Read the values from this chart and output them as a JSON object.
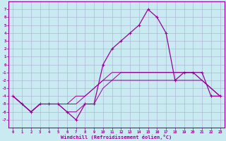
{
  "background_color": "#c8eaf0",
  "grid_color": "#b0b8d8",
  "line_color": "#990099",
  "xlabel": "Windchill (Refroidissement éolien,°C)",
  "ylim": [
    -8,
    8
  ],
  "xlim": [
    -0.5,
    23.5
  ],
  "yticks": [
    -7,
    -6,
    -5,
    -4,
    -3,
    -2,
    -1,
    0,
    1,
    2,
    3,
    4,
    5,
    6,
    7
  ],
  "xticks": [
    0,
    1,
    2,
    3,
    4,
    5,
    6,
    7,
    8,
    9,
    10,
    11,
    12,
    13,
    14,
    15,
    16,
    17,
    18,
    19,
    20,
    21,
    22,
    23
  ],
  "series_main_x": [
    0,
    1,
    2,
    3,
    4,
    5,
    6,
    7,
    8,
    9,
    10,
    11,
    12,
    13,
    14,
    15,
    16,
    17,
    18,
    19,
    20,
    21,
    22,
    23
  ],
  "series_main_y": [
    -4,
    -5,
    -6,
    -5,
    -5,
    -5,
    -6,
    -7,
    -5,
    -5,
    0,
    2,
    3,
    4,
    5,
    7,
    6,
    4,
    -2,
    -1,
    -1,
    -1,
    -4,
    -4
  ],
  "series_flat1_x": [
    0,
    1,
    2,
    3,
    4,
    5,
    6,
    7,
    8,
    9,
    10,
    11,
    12,
    13,
    14,
    15,
    16,
    17,
    18,
    19,
    20,
    21,
    22,
    23
  ],
  "series_flat1_y": [
    -4,
    -5,
    -6,
    -5,
    -5,
    -5,
    -5,
    -5,
    -4,
    -3,
    -2,
    -2,
    -2,
    -2,
    -2,
    -2,
    -2,
    -2,
    -2,
    -2,
    -2,
    -2,
    -3,
    -4
  ],
  "series_flat2_x": [
    0,
    1,
    2,
    3,
    4,
    5,
    6,
    7,
    8,
    9,
    10,
    11,
    12,
    13,
    14,
    15,
    16,
    17,
    18,
    19,
    20,
    21,
    22,
    23
  ],
  "series_flat2_y": [
    -4,
    -5,
    -6,
    -5,
    -5,
    -5,
    -5,
    -4,
    -4,
    -3,
    -2,
    -1,
    -1,
    -1,
    -1,
    -1,
    -1,
    -1,
    -1,
    -1,
    -1,
    -2,
    -3,
    -4
  ],
  "series_flat3_x": [
    0,
    1,
    2,
    3,
    4,
    5,
    6,
    7,
    8,
    9,
    10,
    11,
    12,
    13,
    14,
    15,
    16,
    17,
    18,
    19,
    20,
    21,
    22,
    23
  ],
  "series_flat3_y": [
    -4,
    -5,
    -6,
    -5,
    -5,
    -5,
    -6,
    -6,
    -5,
    -5,
    -3,
    -2,
    -1,
    -1,
    -1,
    -1,
    -1,
    -1,
    -1,
    -1,
    -1,
    -2,
    -3,
    -4
  ]
}
